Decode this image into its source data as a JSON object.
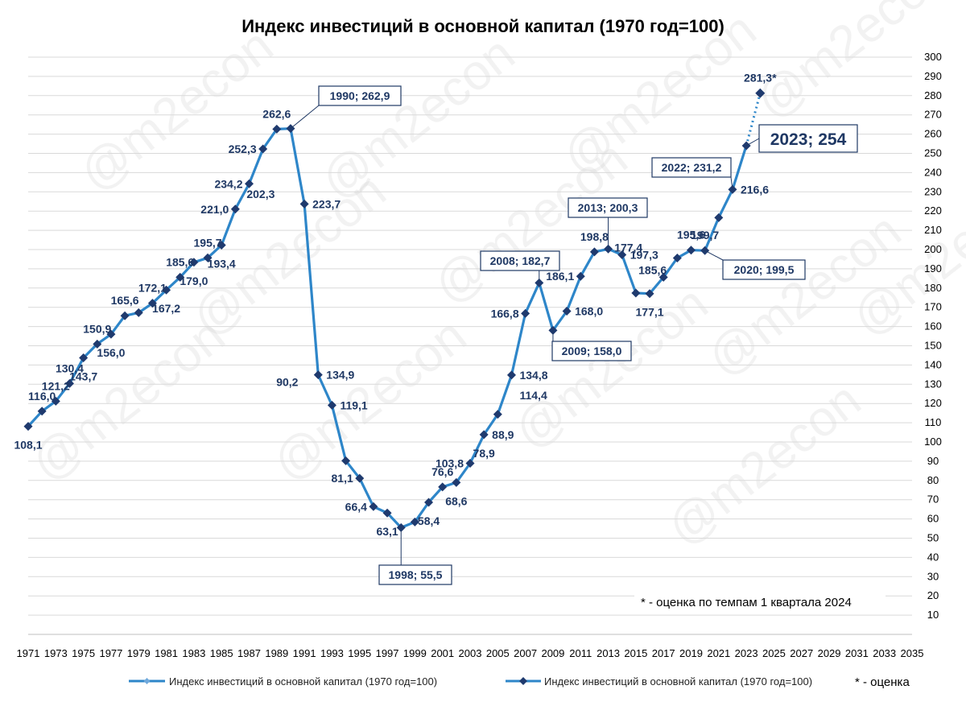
{
  "chart_data": {
    "type": "line",
    "title": "Индекс инвестиций в основной капитал (1970 год=100)",
    "xlabel": "",
    "ylabel": "",
    "x_range": [
      1971,
      2035
    ],
    "ylim": [
      0,
      300
    ],
    "y_step": 10,
    "x_tick_labels": [
      "1971",
      "1973",
      "1975",
      "1977",
      "1979",
      "1981",
      "1983",
      "1985",
      "1987",
      "1989",
      "1991",
      "1993",
      "1995",
      "1997",
      "1999",
      "2001",
      "2003",
      "2005",
      "2007",
      "2009",
      "2011",
      "2013",
      "2015",
      "2017",
      "2019",
      "2021",
      "2023",
      "2025",
      "2027",
      "2029",
      "2031",
      "2033",
      "2035"
    ],
    "y_tick_labels": [
      "10",
      "20",
      "30",
      "40",
      "50",
      "60",
      "70",
      "80",
      "90",
      "100",
      "110",
      "120",
      "130",
      "140",
      "150",
      "160",
      "170",
      "180",
      "190",
      "200",
      "210",
      "220",
      "230",
      "240",
      "250",
      "260",
      "270",
      "280",
      "290",
      "300"
    ],
    "series": [
      {
        "name": "Индекс инвестиций в основной капитал (1970 год=100)",
        "color": "#2e86c9",
        "x": [
          1971,
          1972,
          1973,
          1974,
          1975,
          1976,
          1977,
          1978,
          1979,
          1980,
          1981,
          1982,
          1983,
          1984,
          1985,
          1986,
          1987,
          1988,
          1989,
          1990,
          1991,
          1992,
          1993,
          1994,
          1995,
          1996,
          1997,
          1998,
          1999,
          2000,
          2001,
          2002,
          2003,
          2004,
          2005,
          2006,
          2007,
          2008,
          2009,
          2010,
          2011,
          2012,
          2013,
          2014,
          2015,
          2016,
          2017,
          2018,
          2019,
          2020,
          2021,
          2022,
          2023
        ],
        "values": [
          108.1,
          116.0,
          121.2,
          130.4,
          143.7,
          150.9,
          156.0,
          165.6,
          167.2,
          172.1,
          179.0,
          185.6,
          193.4,
          195.7,
          202.3,
          221.0,
          234.2,
          252.3,
          262.6,
          262.9,
          223.7,
          134.9,
          119.1,
          90.2,
          81.1,
          66.4,
          63.1,
          55.5,
          58.4,
          68.6,
          76.6,
          78.9,
          88.9,
          103.8,
          114.4,
          134.8,
          166.8,
          182.7,
          158.0,
          168.0,
          186.1,
          198.8,
          200.3,
          197.3,
          177.4,
          177.1,
          185.6,
          195.6,
          199.7,
          199.5,
          216.6,
          231.2,
          254.0
        ]
      },
      {
        "name": "Индекс инвестиций в основной капитал (1970 год=100)",
        "color": "#2e86c9",
        "style": "dotted",
        "x": [
          2023,
          2024
        ],
        "values": [
          254.0,
          281.3
        ]
      }
    ],
    "data_labels": [
      {
        "x": 1971,
        "text": "108,1",
        "side": "below"
      },
      {
        "x": 1972,
        "text": "116,0",
        "side": "above"
      },
      {
        "x": 1973,
        "text": "121,2",
        "side": "above"
      },
      {
        "x": 1974,
        "text": "130,4",
        "side": "above"
      },
      {
        "x": 1975,
        "text": "143,7",
        "side": "below"
      },
      {
        "x": 1976,
        "text": "150,9",
        "side": "above"
      },
      {
        "x": 1977,
        "text": "156,0",
        "side": "below"
      },
      {
        "x": 1978,
        "text": "165,6",
        "side": "above"
      },
      {
        "x": 1980,
        "text": "172,1",
        "side": "above"
      },
      {
        "x": 1981,
        "text": "167,2",
        "side": "below"
      },
      {
        "x": 1982,
        "text": "185,6",
        "side": "above"
      },
      {
        "x": 1983,
        "text": "179,0",
        "side": "below"
      },
      {
        "x": 1984,
        "text": "195,7",
        "side": "above"
      },
      {
        "x": 1985,
        "text": "193,4",
        "side": "below"
      },
      {
        "x": 1986,
        "text": "221,0",
        "side": "left"
      },
      {
        "x": 1986,
        "text": "202,3",
        "side": "below"
      },
      {
        "x": 1987,
        "text": "234,2",
        "side": "left"
      },
      {
        "x": 1988,
        "text": "252,3",
        "side": "left"
      },
      {
        "x": 1989,
        "text": "262,6",
        "side": "above"
      },
      {
        "x": 1991,
        "text": "223,7",
        "side": "right"
      },
      {
        "x": 1992,
        "text": "134,9",
        "side": "right"
      },
      {
        "x": 1993,
        "text": "119,1",
        "side": "right"
      },
      {
        "x": 1993,
        "text": "90,2",
        "side": "left"
      },
      {
        "x": 1995,
        "text": "81,1",
        "side": "left"
      },
      {
        "x": 1996,
        "text": "66,4",
        "side": "left"
      },
      {
        "x": 1997,
        "text": "63,1",
        "side": "below"
      },
      {
        "x": 2000,
        "text": "58,4",
        "side": "below"
      },
      {
        "x": 2001,
        "text": "76,6",
        "side": "above"
      },
      {
        "x": 2002,
        "text": "68,6",
        "side": "below"
      },
      {
        "x": 2003,
        "text": "103,8",
        "side": "left"
      },
      {
        "x": 2004,
        "text": "78,9",
        "side": "below"
      },
      {
        "x": 2004,
        "text": "88,9",
        "side": "right"
      },
      {
        "x": 2006,
        "text": "114,4",
        "side": "right"
      },
      {
        "x": 2006,
        "text": "134,8",
        "side": "right"
      },
      {
        "x": 2007,
        "text": "166,8",
        "side": "left"
      },
      {
        "x": 2010,
        "text": "168,0",
        "side": "right"
      },
      {
        "x": 2011,
        "text": "186,1",
        "side": "left"
      },
      {
        "x": 2012,
        "text": "198,8",
        "side": "above"
      },
      {
        "x": 2014,
        "text": "197,3",
        "side": "right"
      },
      {
        "x": 2014,
        "text": "177,4",
        "side": "below"
      },
      {
        "x": 2017,
        "text": "185,6",
        "side": "left"
      },
      {
        "x": 2016,
        "text": "177,1",
        "side": "below"
      },
      {
        "x": 2019,
        "text": "195,6",
        "side": "above"
      },
      {
        "x": 2020,
        "text": "199,7",
        "side": "above"
      },
      {
        "x": 2022,
        "text": "216,6",
        "side": "right"
      },
      {
        "x": 2024,
        "text": "281,3*",
        "side": "above"
      }
    ],
    "callouts": [
      {
        "x": 1990,
        "text": "1990; 262,9"
      },
      {
        "x": 1998,
        "text": "1998; 55,5"
      },
      {
        "x": 2008,
        "text": "2008; 182,7"
      },
      {
        "x": 2009,
        "text": "2009; 158,0"
      },
      {
        "x": 2013,
        "text": "2013; 200,3"
      },
      {
        "x": 2020,
        "text": "2020; 199,5"
      },
      {
        "x": 2022,
        "text": "2022; 231,2"
      },
      {
        "x": 2023,
        "text": "2023;   254",
        "emphasis": true
      }
    ],
    "annotation": "* - оценка по темпам 1 квартала 2024",
    "legend": {
      "position": "bottom",
      "entries": [
        {
          "label": "Индекс инвестиций в основной капитал (1970 год=100)",
          "marker": "small-diamond",
          "color": "#2e86c9"
        },
        {
          "label": "Индекс инвестиций в основной капитал (1970 год=100)",
          "marker": "diamond",
          "color": "#2e86c9"
        }
      ],
      "extra": "* - оценка"
    },
    "grid": true,
    "watermark": "@m2econ"
  }
}
